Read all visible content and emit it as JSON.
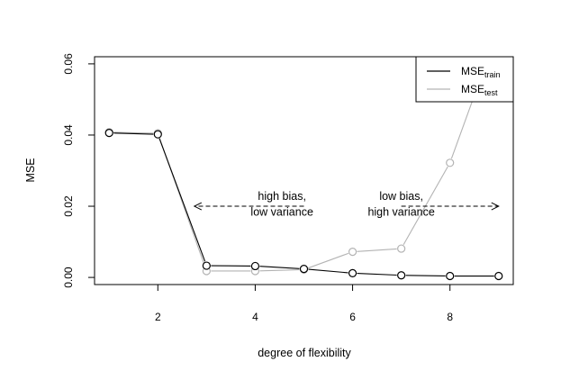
{
  "chart_data": {
    "type": "line",
    "title": "",
    "xlabel": "degree of flexibility",
    "ylabel": "MSE",
    "xlim": [
      0.7,
      9.3
    ],
    "ylim": [
      -0.002,
      0.062
    ],
    "x_ticks": [
      2,
      4,
      6,
      8
    ],
    "y_ticks": [
      0.0,
      0.02,
      0.04,
      0.06
    ],
    "y_tick_labels": [
      "0.00",
      "0.02",
      "0.04",
      "0.06"
    ],
    "grid": false,
    "legend_position": "top-right",
    "x": [
      1,
      2,
      3,
      4,
      5,
      6,
      7,
      8,
      9
    ],
    "series": [
      {
        "legend_main": "MSE",
        "legend_sub": "train",
        "color": "#000000",
        "values": [
          0.0406,
          0.0402,
          0.0033,
          0.0032,
          0.0024,
          0.0012,
          0.0006,
          0.0004,
          0.0004
        ]
      },
      {
        "legend_main": "MSE",
        "legend_sub": "test",
        "color": "#b3b3b3",
        "values": [
          0.0408,
          0.0405,
          0.0018,
          0.0018,
          0.0022,
          0.0072,
          0.0081,
          0.0322,
          0.07
        ]
      }
    ],
    "annotations": [
      {
        "lines": [
          "high bias,",
          "low variance"
        ],
        "text_x": 4.55,
        "text_y1": 0.0218,
        "text_y2": 0.0174,
        "arrow_from_x": 5.0,
        "arrow_to_x": 2.75,
        "arrow_y": 0.02,
        "arrow_head": "left"
      },
      {
        "lines": [
          "low bias,",
          "high variance"
        ],
        "text_x": 7.0,
        "text_y1": 0.0218,
        "text_y2": 0.0174,
        "arrow_from_x": 7.0,
        "arrow_to_x": 9.0,
        "arrow_y": 0.02,
        "arrow_head": "right"
      }
    ]
  }
}
